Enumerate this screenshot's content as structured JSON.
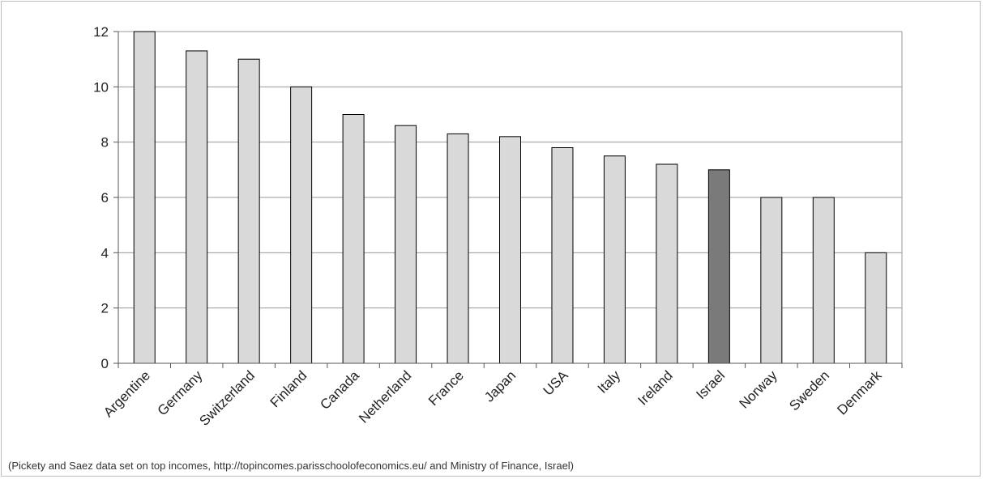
{
  "chart_data": {
    "type": "bar",
    "categories": [
      "Argentine",
      "Germany",
      "Switzerland",
      "Finland",
      "Canada",
      "Netherland",
      "France",
      "Japan",
      "USA",
      "Italy",
      "Ireland",
      "Israel",
      "Norway",
      "Sweden",
      "Denmark"
    ],
    "values": [
      12,
      11.3,
      11,
      10,
      9,
      8.6,
      8.3,
      8.2,
      7.8,
      7.5,
      7.2,
      7,
      6,
      6,
      4
    ],
    "highlight_category": "Israel",
    "ylim": [
      0,
      12
    ],
    "yticks": [
      0,
      2,
      4,
      6,
      8,
      10,
      12
    ],
    "grid": true,
    "legend": "none",
    "colors": {
      "bar": "#d9d9d9",
      "highlight": "#7a7a7a",
      "bar_stroke": "#000000",
      "grid": "#9a9a9a",
      "axis": "#555555"
    }
  },
  "source_caption": "(Pickety and Saez data set on top incomes, http://topincomes.parisschoolofeconomics.eu/ and Ministry of Finance, Israel)"
}
